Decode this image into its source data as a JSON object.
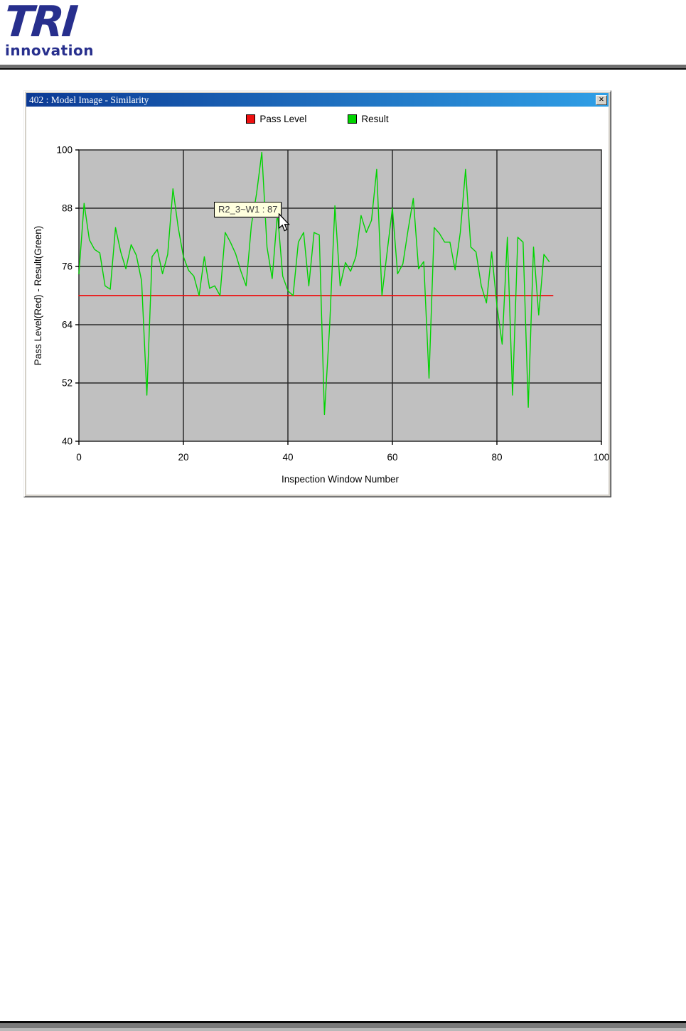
{
  "logo": {
    "text": "TRI",
    "subtext": "innovation",
    "color": "#272F8D"
  },
  "window": {
    "title": "402 : Model Image - Similarity",
    "close_glyph": "✕",
    "titlebar_gradient": [
      "#0C3A94",
      "#2F9FE6"
    ]
  },
  "legend": [
    {
      "label": "Pass Level",
      "color": "#EE1010"
    },
    {
      "label": "Result",
      "color": "#00D400"
    }
  ],
  "tooltip": {
    "text": "R2_3~W1 : 87",
    "bg": "#FFFFDE"
  },
  "chart_data": {
    "type": "line",
    "title": "",
    "xlabel": "Inspection Window Number",
    "ylabel": "Pass Level(Red) - Result(Green)",
    "xlim": [
      0,
      100
    ],
    "ylim": [
      40,
      100
    ],
    "x_ticks": [
      0,
      20,
      40,
      60,
      80,
      100
    ],
    "y_ticks": [
      40,
      52,
      64,
      76,
      88,
      100
    ],
    "grid": true,
    "grid_color": "#2a2a2a",
    "plot_bg": "#C0C0C0",
    "legend_position": "top-center",
    "pass_level": 70,
    "highlighted_point": {
      "label": "R2_3~W1",
      "value": 87
    },
    "series": [
      {
        "name": "Pass Level",
        "color": "#EE1010",
        "x": [
          0,
          90.7
        ],
        "values": [
          70,
          70
        ]
      },
      {
        "name": "Result",
        "color": "#00D400",
        "x_start": 0,
        "x_step": 1,
        "values": [
          74.5,
          89,
          81.5,
          79.5,
          78.8,
          72,
          71.3,
          84,
          79,
          75.5,
          80.5,
          78.3,
          73,
          49.5,
          78,
          79.5,
          74.5,
          78.5,
          92,
          84,
          78,
          75.2,
          74,
          70,
          78,
          71.5,
          72,
          70,
          83,
          81,
          78.6,
          75,
          72,
          84.5,
          91,
          99.5,
          80,
          73.5,
          87,
          74,
          71,
          70,
          81,
          83,
          72,
          83,
          82.5,
          45.5,
          64,
          88.5,
          72,
          76.8,
          75,
          78,
          86.5,
          83,
          85.5,
          96,
          70,
          79,
          88,
          74.5,
          76.5,
          83.5,
          90,
          75.5,
          77,
          53,
          84,
          82.8,
          81,
          81,
          75.3,
          83,
          96,
          80,
          79,
          72,
          68.5,
          79,
          68,
          60,
          82,
          49.5,
          82,
          81,
          47,
          80,
          66,
          78.5,
          77
        ]
      }
    ]
  }
}
